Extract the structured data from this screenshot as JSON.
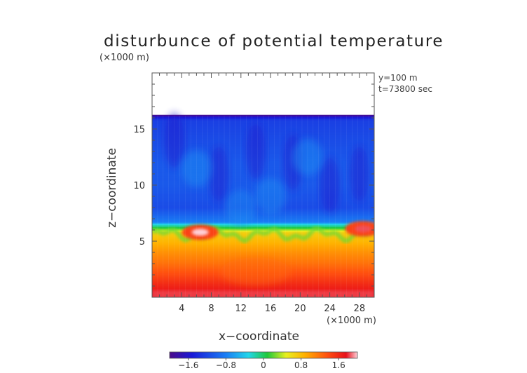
{
  "chart_data": {
    "type": "heatmap",
    "title": "disturbunce of potential temperature",
    "ylabel": "z−coordinate",
    "xlabel": "x−coordinate",
    "y_unit": "(×1000 m)",
    "x_unit": "(×1000 m)",
    "annotations": [
      "y=100  m",
      "t=73800 sec"
    ],
    "xlim": [
      0,
      30
    ],
    "ylim": [
      0,
      20
    ],
    "x_ticks": [
      4,
      8,
      12,
      16,
      20,
      24,
      28
    ],
    "x_tick_labels": [
      "4",
      "8",
      "12",
      "16",
      "20",
      "24",
      "28"
    ],
    "y_ticks": [
      5,
      10,
      15
    ],
    "y_tick_labels": [
      "5",
      "10",
      "15"
    ],
    "colorbar": {
      "range": [
        -2.0,
        2.0
      ],
      "ticks": [
        -1.6,
        -0.8,
        0,
        0.8,
        1.6
      ],
      "tick_labels": [
        "−1.6",
        "−0.8",
        "0",
        "0.8",
        "1.6"
      ]
    },
    "field_profile_z_km": [
      0,
      1,
      2,
      3,
      4,
      5,
      5.8,
      6.3,
      6.7,
      8,
      10,
      12,
      14,
      15.8,
      16.2
    ],
    "field_profile_value": [
      1.75,
      1.55,
      1.25,
      1.0,
      0.8,
      0.55,
      0.35,
      -0.6,
      -1.3,
      -1.5,
      -1.45,
      -1.45,
      -1.5,
      -1.55,
      -1.8
    ],
    "domain_top_km": 16.2,
    "warm_pockets": [
      {
        "x_km": 6.5,
        "z_km": 5.8,
        "value": 2.0
      },
      {
        "x_km": 28.5,
        "z_km": 6.1,
        "value": 1.8
      }
    ]
  }
}
